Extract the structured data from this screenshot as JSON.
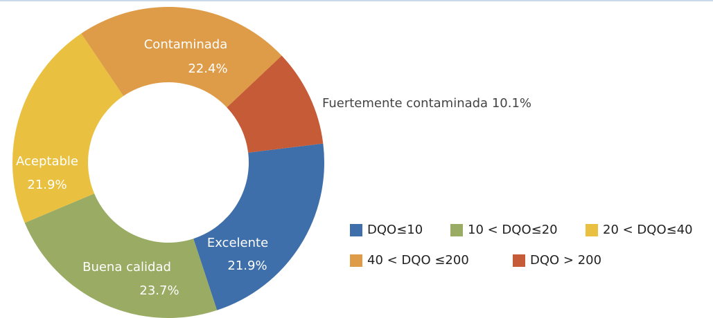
{
  "chart_data": {
    "type": "donut",
    "categories": [
      "Excelente",
      "Buena calidad",
      "Aceptable",
      "Contaminada",
      "Fuertemente contaminada"
    ],
    "series": [
      {
        "name": "DQO≤10",
        "color": "#3f6faa"
      },
      {
        "name": "10 < DQO≤20",
        "color": "#9aab63"
      },
      {
        "name": "20 < DQO≤40",
        "color": "#e9c03f"
      },
      {
        "name": "40 < DQO ≤200",
        "color": "#df9c48"
      },
      {
        "name": "DQO > 200",
        "color": "#c65b37"
      }
    ],
    "values": [
      21.9,
      23.7,
      21.9,
      22.4,
      10.1
    ],
    "value_labels": [
      "21.9%",
      "23.7%",
      "21.9%",
      "22.4%",
      "10.1%"
    ]
  }
}
